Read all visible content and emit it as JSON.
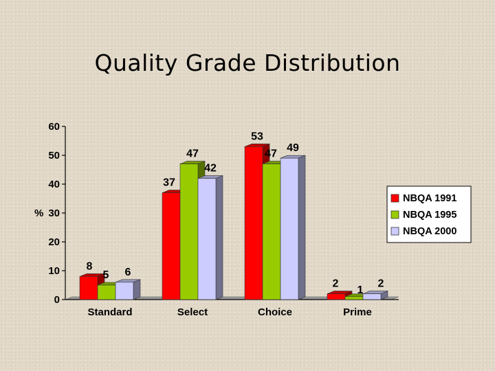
{
  "slide": {
    "title": "Quality Grade Distribution"
  },
  "chart_data": {
    "type": "bar",
    "title": "Quality Grade Distribution",
    "ylabel": "%",
    "xlabel": "",
    "categories": [
      "Standard",
      "Select",
      "Choice",
      "Prime"
    ],
    "ylim": [
      0,
      60
    ],
    "yticks": [
      0,
      10,
      20,
      30,
      40,
      50,
      60
    ],
    "series": [
      {
        "name": "NBQA 1991",
        "values": [
          8,
          37,
          53,
          2
        ],
        "color": "#ff0000"
      },
      {
        "name": "NBQA 1995",
        "values": [
          5,
          47,
          47,
          1
        ],
        "color": "#99cc00"
      },
      {
        "name": "NBQA 2000",
        "values": [
          6,
          42,
          49,
          2
        ],
        "color": "#ccccff"
      }
    ],
    "legend_position": "right",
    "grid": false,
    "style": "3d-clustered-bar"
  }
}
